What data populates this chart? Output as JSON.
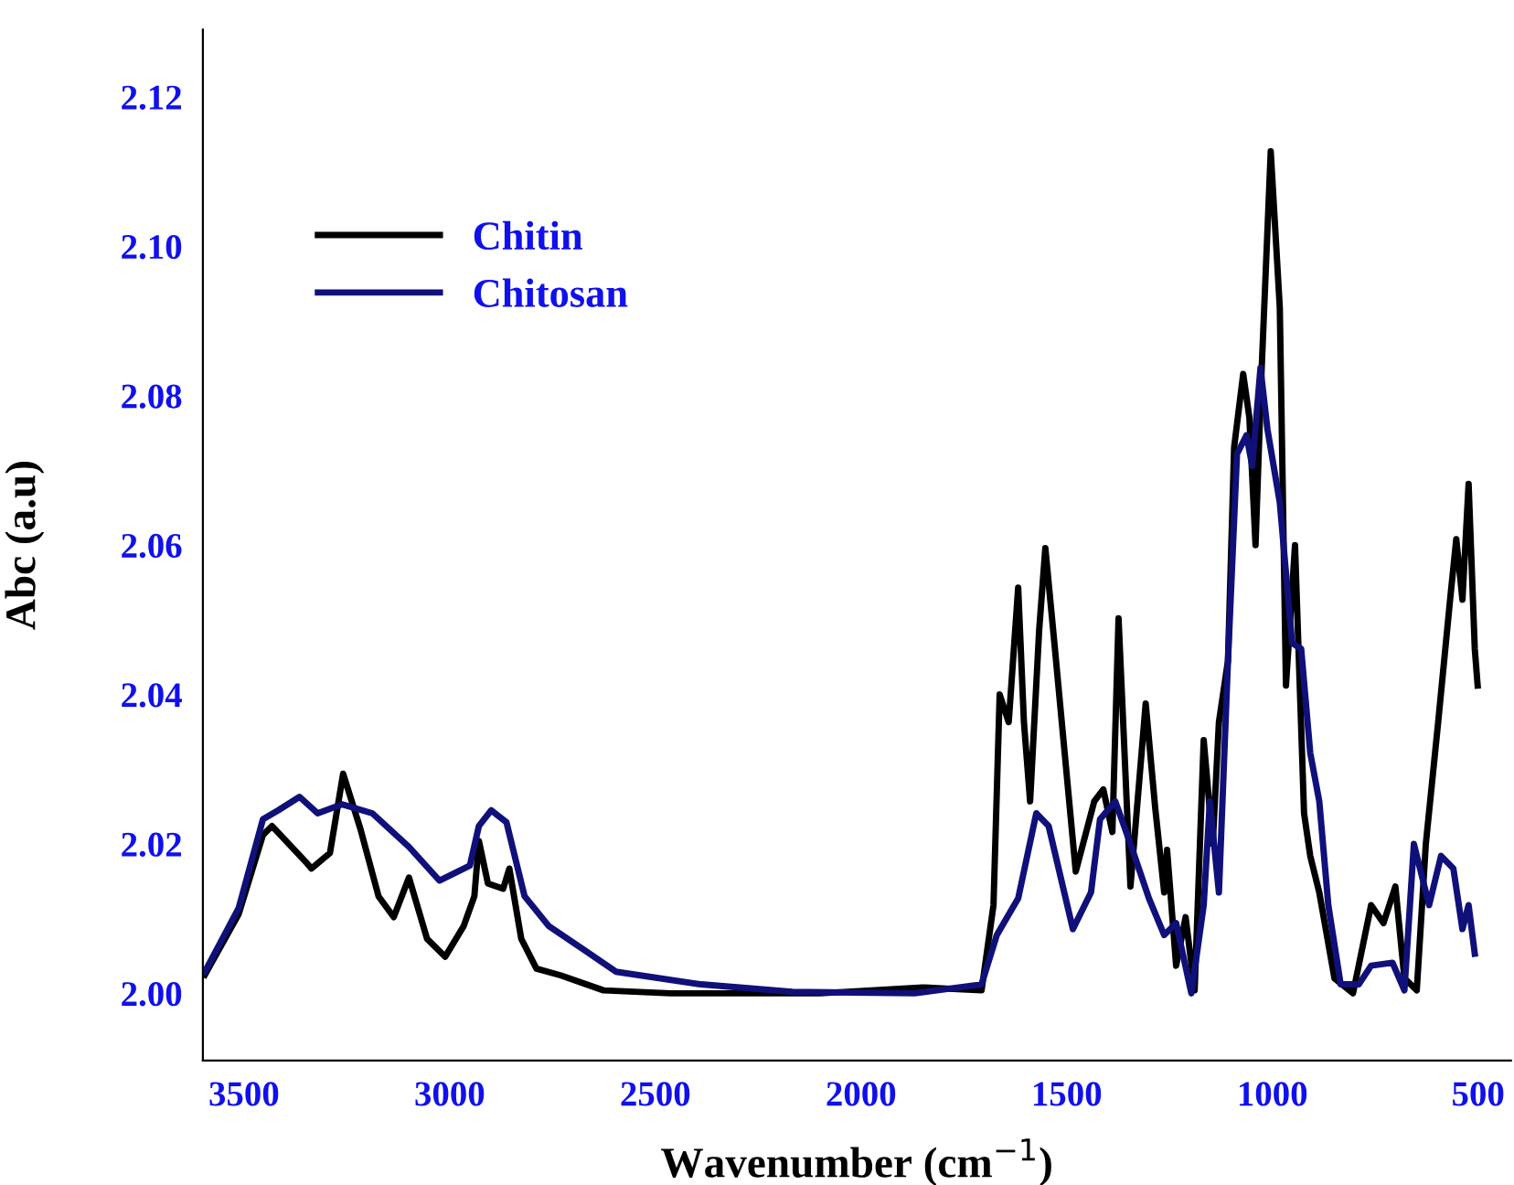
{
  "chart_data": {
    "type": "line",
    "xlabel": "Wavenumber (cm$^{−1}$)",
    "ylabel": "Abc (a.u)",
    "xlim": [
      3600,
      420
    ],
    "ylim": [
      1.991,
      2.129
    ],
    "xticks": [
      3500,
      3000,
      2500,
      2000,
      1500,
      1000,
      500
    ],
    "yticks": [
      {
        "value": 2.0,
        "label": "2.00"
      },
      2.02,
      2.04,
      2.06,
      2.08,
      {
        "value": 2.1,
        "label": "2.10"
      },
      2.12
    ],
    "grid": false,
    "legend": "top left",
    "marker": "none",
    "line_style": "solid",
    "series": [
      {
        "name": "Chitin",
        "color": "#000000",
        "x": [
          3595,
          3513,
          3454,
          3432,
          3350,
          3336,
          3291,
          3259,
          3217,
          3173,
          3136,
          3099,
          3055,
          3011,
          2966,
          2940,
          2929,
          2907,
          2870,
          2855,
          2826,
          2789,
          2730,
          2626,
          2463,
          2100,
          1850,
          1707,
          1678,
          1663,
          1641,
          1618,
          1604,
          1589,
          1567,
          1552,
          1530,
          1478,
          1433,
          1411,
          1389,
          1374,
          1345,
          1308,
          1285,
          1263,
          1256,
          1234,
          1211,
          1189,
          1167,
          1145,
          1130,
          1108,
          1093,
          1071,
          1056,
          1041,
          1026,
          1004,
          982,
          967,
          945,
          923,
          908,
          886,
          849,
          804,
          760,
          730,
          701,
          679,
          649,
          627,
          597,
          568,
          553,
          538,
          523,
          508,
          501
        ],
        "values": [
          2.0025,
          2.0106,
          2.0212,
          2.0224,
          2.0176,
          2.0167,
          2.0188,
          2.0294,
          2.022,
          2.013,
          2.0102,
          2.0155,
          2.0073,
          2.0049,
          2.009,
          2.013,
          2.0204,
          2.0147,
          2.014,
          2.0167,
          2.0073,
          2.0033,
          2.0024,
          2.0004,
          2.0,
          2.0,
          2.0008,
          2.0004,
          2.0118,
          2.04,
          2.0363,
          2.0543,
          2.0363,
          2.0257,
          2.0486,
          2.0596,
          2.0469,
          2.0163,
          2.0257,
          2.0273,
          2.0216,
          2.0502,
          2.0143,
          2.0388,
          2.0249,
          2.0135,
          2.0192,
          2.0037,
          2.0102,
          2.0004,
          2.0339,
          2.02,
          2.0363,
          2.0445,
          2.0731,
          2.0829,
          2.0771,
          2.06,
          2.0837,
          2.1127,
          2.0918,
          2.0412,
          2.06,
          2.0241,
          2.0184,
          2.0135,
          2.002,
          2.0,
          2.0118,
          2.0094,
          2.0143,
          2.002,
          2.0004,
          2.02,
          2.0363,
          2.0527,
          2.0608,
          2.0527,
          2.0682,
          2.0461,
          2.0412
        ]
      },
      {
        "name": "Chitosan",
        "color": "#10107a",
        "x": [
          3595,
          3513,
          3454,
          3417,
          3365,
          3321,
          3262,
          3188,
          3099,
          3025,
          2951,
          2929,
          2899,
          2862,
          2818,
          2759,
          2670,
          2596,
          2389,
          2167,
          1870,
          1707,
          1670,
          1618,
          1574,
          1544,
          1485,
          1441,
          1419,
          1382,
          1345,
          1300,
          1263,
          1234,
          1197,
          1167,
          1152,
          1130,
          1108,
          1086,
          1063,
          1049,
          1029,
          1012,
          982,
          952,
          930,
          908,
          886,
          864,
          834,
          790,
          760,
          708,
          679,
          656,
          619,
          590,
          560,
          538,
          523,
          508
        ],
        "values": [
          2.0029,
          2.0114,
          2.0233,
          2.0245,
          2.0263,
          2.0241,
          2.0253,
          2.0241,
          2.0196,
          2.0151,
          2.0171,
          2.0224,
          2.0245,
          2.0229,
          2.013,
          2.009,
          2.0057,
          2.0029,
          2.0012,
          2.0002,
          2.0,
          2.0012,
          2.0078,
          2.0127,
          2.0241,
          2.0224,
          2.0086,
          2.0135,
          2.0233,
          2.0257,
          2.02,
          2.0127,
          2.0078,
          2.0094,
          2.0,
          2.0118,
          2.0257,
          2.0135,
          2.0445,
          2.0722,
          2.0747,
          2.0706,
          2.0837,
          2.0755,
          2.0657,
          2.0469,
          2.0461,
          2.0322,
          2.0257,
          2.0118,
          2.0012,
          2.0012,
          2.0037,
          2.0041,
          2.0004,
          2.02,
          2.0118,
          2.0184,
          2.0167,
          2.0086,
          2.0118,
          2.0053
        ]
      }
    ]
  }
}
